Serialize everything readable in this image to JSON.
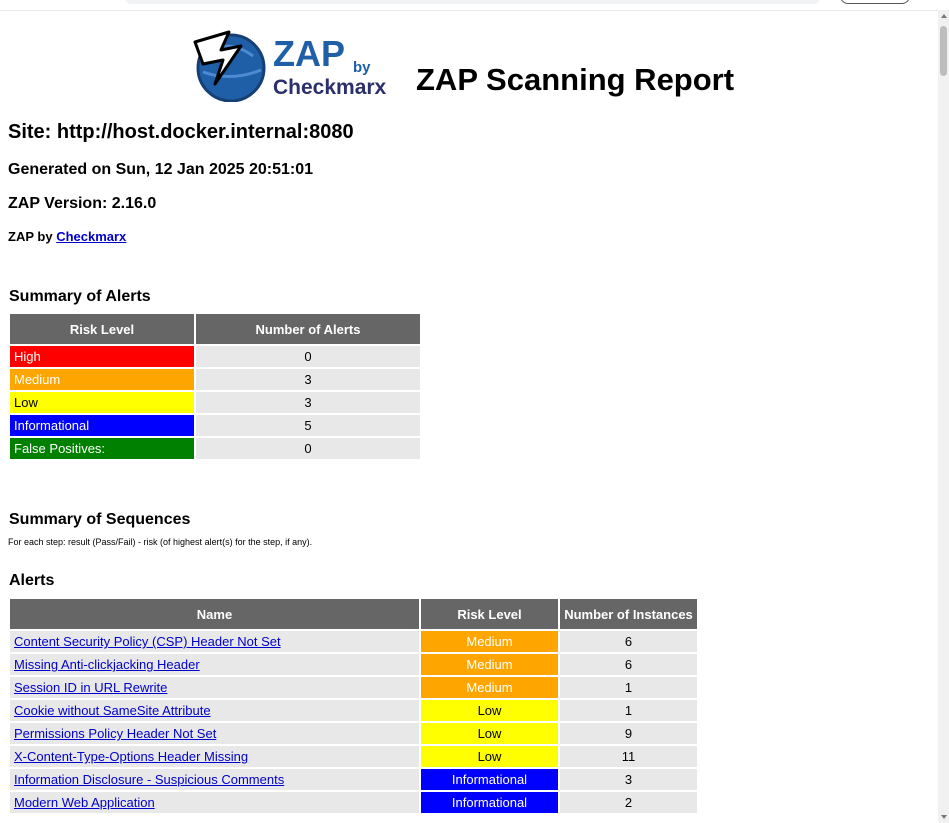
{
  "logo": {
    "brand": "ZAP",
    "by": "by",
    "company": "Checkmarx",
    "icon": "lightning-bolt-globe-icon"
  },
  "report_title": "ZAP Scanning Report",
  "site_heading": "Site: http://host.docker.internal:8080",
  "generated": "Generated on Sun, 12 Jan 2025 20:51:01",
  "version": "ZAP Version: 2.16.0",
  "zap_by_prefix": "ZAP by",
  "zap_by_link": "Checkmarx",
  "summary_alerts_heading": "Summary of Alerts",
  "summary_table": {
    "headers": [
      "Risk Level",
      "Number of Alerts"
    ],
    "rows": [
      {
        "level": "High",
        "count": "0",
        "color": "#ff0000"
      },
      {
        "level": "Medium",
        "count": "3",
        "color": "#ffa500"
      },
      {
        "level": "Low",
        "count": "3",
        "color": "#ffff00"
      },
      {
        "level": "Informational",
        "count": "5",
        "color": "#0000ff"
      },
      {
        "level": "False Positives:",
        "count": "0",
        "color": "#008000"
      }
    ]
  },
  "summary_sequences_heading": "Summary of Sequences",
  "sequences_note": "For each step: result (Pass/Fail) - risk (of highest alert(s) for the step, if any).",
  "alerts_heading": "Alerts",
  "alerts_table": {
    "headers": [
      "Name",
      "Risk Level",
      "Number of Instances"
    ],
    "rows": [
      {
        "name": "Content Security Policy (CSP) Header Not Set",
        "risk": "Medium",
        "count": "6",
        "color": "#ffa500"
      },
      {
        "name": "Missing Anti-clickjacking Header",
        "risk": "Medium",
        "count": "6",
        "color": "#ffa500"
      },
      {
        "name": "Session ID in URL Rewrite",
        "risk": "Medium",
        "count": "1",
        "color": "#ffa500"
      },
      {
        "name": "Cookie without SameSite Attribute",
        "risk": "Low",
        "count": "1",
        "color": "#ffff00"
      },
      {
        "name": "Permissions Policy Header Not Set",
        "risk": "Low",
        "count": "9",
        "color": "#ffff00"
      },
      {
        "name": "X-Content-Type-Options Header Missing",
        "risk": "Low",
        "count": "11",
        "color": "#ffff00"
      },
      {
        "name": "Information Disclosure - Suspicious Comments",
        "risk": "Informational",
        "count": "3",
        "color": "#0000ff"
      },
      {
        "name": "Modern Web Application",
        "risk": "Informational",
        "count": "2",
        "color": "#0000ff"
      }
    ]
  }
}
